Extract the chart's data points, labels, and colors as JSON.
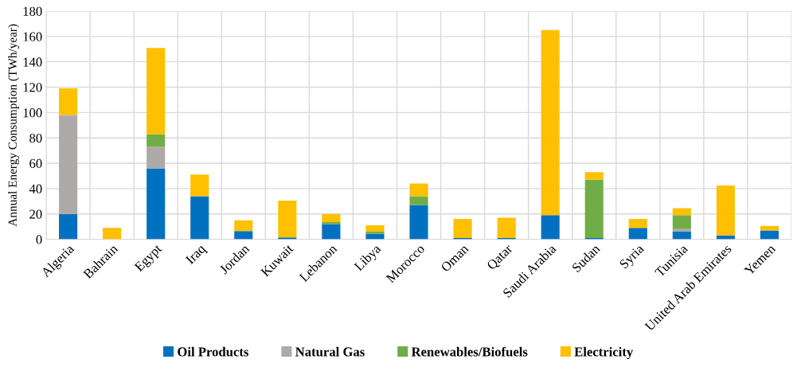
{
  "chart_data": {
    "type": "bar",
    "stacked": true,
    "ylabel": "Annual Energy Consumption (TWh/year)",
    "categories": [
      "Algeria",
      "Bahrain",
      "Egypt",
      "Iraq",
      "Jordan",
      "Kuwait",
      "Lebanon",
      "Libya",
      "Morocco",
      "Oman",
      "Qatar",
      "Saudi Arabia",
      "Sudan",
      "Syria",
      "Tunisia",
      "United Arab Emirates",
      "Yemen"
    ],
    "series": [
      {
        "name": "Oil Products",
        "color": "#0070c0",
        "values": [
          20,
          0,
          56,
          34,
          6,
          1.5,
          12,
          4.5,
          27,
          1,
          1,
          19,
          1,
          9,
          6,
          3,
          7
        ]
      },
      {
        "name": "Natural Gas",
        "color": "#aeaaaa",
        "values": [
          78,
          0,
          17,
          0,
          0,
          0,
          0,
          0,
          0,
          0,
          0,
          0,
          0,
          0,
          2,
          0,
          0
        ]
      },
      {
        "name": "Renewables/Biofuels",
        "color": "#70ad47",
        "values": [
          0,
          0,
          10,
          0,
          1,
          0,
          1.5,
          1.5,
          7,
          0,
          0,
          0,
          46,
          0,
          11,
          0,
          0
        ]
      },
      {
        "name": "Electricity",
        "color": "#ffc000",
        "values": [
          21,
          9,
          68,
          17,
          8,
          29,
          6.5,
          5,
          10,
          15,
          16,
          146,
          6,
          7,
          5.5,
          39.5,
          3.5
        ]
      }
    ],
    "ylim": [
      0,
      180
    ],
    "yticks": [
      0,
      20,
      40,
      60,
      80,
      100,
      120,
      140,
      160,
      180
    ],
    "grid": true,
    "legend": "bottom"
  }
}
